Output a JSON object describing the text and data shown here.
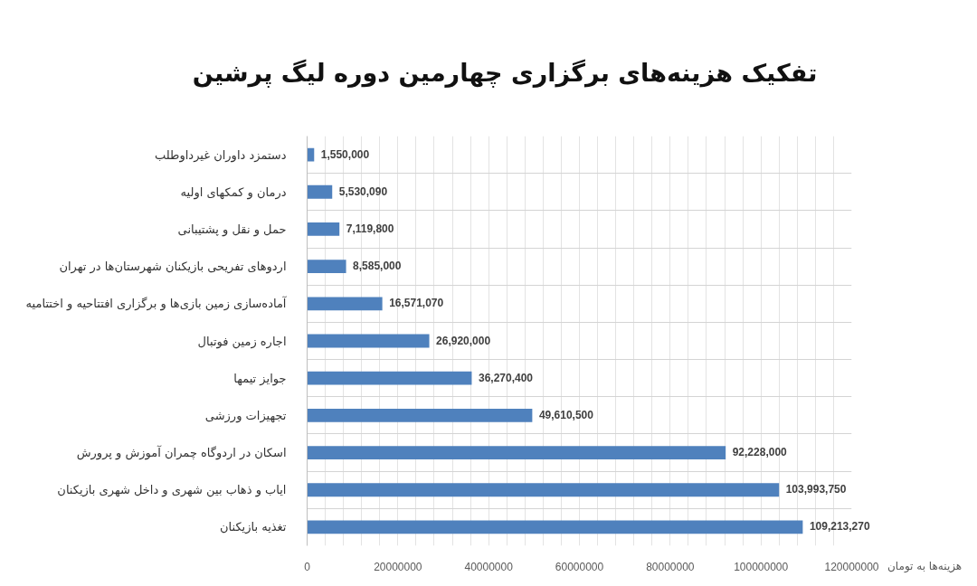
{
  "chart_data": {
    "type": "bar",
    "orientation": "horizontal",
    "title": "تفکیک هزینه‌های برگزاری چهارمین دوره لیگ پرشین",
    "xlabel": "هزینه‌ها به تومان",
    "categories": [
      "دستمزد داوران غیرداوطلب",
      "درمان و کمکهای اولیه",
      "حمل و نقل و پشتیبانی",
      "اردوهای تفریحی بازیکنان شهرستان‌ها در تهران",
      "آماده‌سازی زمین بازی‌ها و برگزاری افتتاحیه و اختتامیه",
      "اجاره زمین فوتبال",
      "جوایز تیمها",
      "تجهیزات ورزشی",
      "اسکان در اردوگاه چمران آموزش و پرورش",
      "ایاب و ذهاب بین شهری و داخل شهری بازیکنان",
      "تغذیه بازیکنان"
    ],
    "values": [
      1550000,
      5530090,
      7119800,
      8585000,
      16571070,
      26920000,
      36270400,
      49610500,
      92228000,
      103993750,
      109213270
    ],
    "value_labels": [
      "1,550,000",
      "5,530,090",
      "7,119,800",
      "8,585,000",
      "16,571,070",
      "26,920,000",
      "36,270,400",
      "49,610,500",
      "92,228,000",
      "103,993,750",
      "109,213,270"
    ],
    "color": "#4f81bd",
    "xlim": [
      0,
      120000000
    ],
    "xticks": [
      0,
      {
        "value": 4000000,
        "label": null
      },
      {
        "value": 8000000,
        "label": null
      },
      {
        "value": 12000000,
        "label": null
      },
      {
        "value": 16000000,
        "label": null
      },
      20000000,
      {
        "value": 24000000,
        "label": null
      },
      {
        "value": 28000000,
        "label": null
      },
      {
        "value": 32000000,
        "label": null
      },
      {
        "value": 36000000,
        "label": null
      },
      40000000,
      {
        "value": 44000000,
        "label": null
      },
      {
        "value": 48000000,
        "label": null
      },
      {
        "value": 52000000,
        "label": null
      },
      {
        "value": 56000000,
        "label": null
      },
      60000000,
      {
        "value": 64000000,
        "label": null
      },
      {
        "value": 68000000,
        "label": null
      },
      {
        "value": 72000000,
        "label": null
      },
      {
        "value": 76000000,
        "label": null
      },
      80000000,
      {
        "value": 84000000,
        "label": null
      },
      {
        "value": 88000000,
        "label": null
      },
      {
        "value": 92000000,
        "label": null
      },
      {
        "value": 96000000,
        "label": null
      },
      100000000,
      {
        "value": 104000000,
        "label": null
      },
      {
        "value": 108000000,
        "label": null
      },
      {
        "value": 112000000,
        "label": null
      },
      {
        "value": 116000000,
        "label": null
      },
      120000000
    ],
    "grid": true
  }
}
